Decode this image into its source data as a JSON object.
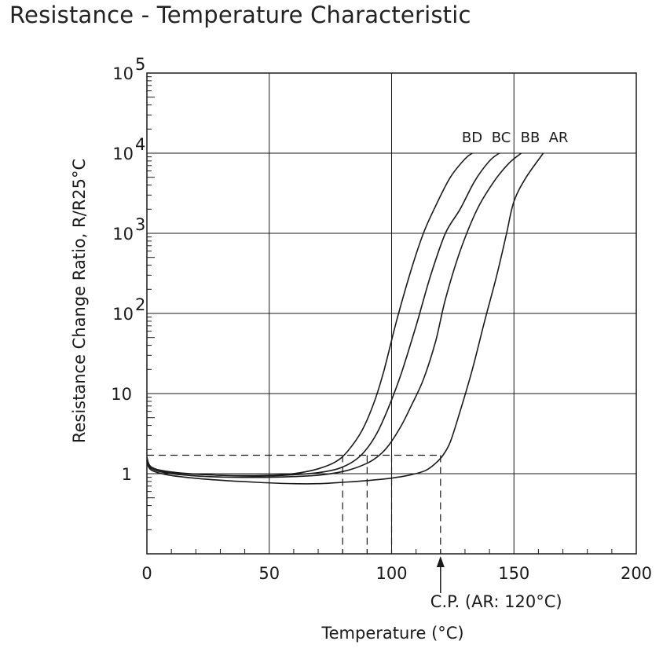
{
  "title": "Resistance - Temperature Characteristic",
  "chart_data": {
    "type": "line",
    "title": "Resistance - Temperature Characteristic",
    "xlabel": "Temperature (°C)",
    "ylabel": "Resistance Change Ratio, R/R25°C",
    "xlim": [
      0,
      200
    ],
    "ylim": [
      0.1,
      100000
    ],
    "yscale": "log",
    "grid": true,
    "x_ticks": [
      0,
      50,
      100,
      150,
      200
    ],
    "x_tick_labels": [
      "0",
      "50",
      "100",
      "150",
      "200"
    ],
    "y_ticks": [
      {
        "value": 1,
        "base": "1",
        "exp": ""
      },
      {
        "value": 10,
        "base": "10",
        "exp": ""
      },
      {
        "value": 100,
        "base": "10",
        "exp": "2"
      },
      {
        "value": 1000,
        "base": "10",
        "exp": "3"
      },
      {
        "value": 10000,
        "base": "10",
        "exp": "4"
      },
      {
        "value": 100000,
        "base": "10",
        "exp": "5"
      }
    ],
    "series": [
      {
        "name": "BD",
        "x": [
          0,
          2,
          10,
          25,
          40,
          55,
          62,
          70,
          77,
          82,
          88,
          93,
          97,
          102,
          108,
          113,
          118,
          124,
          130,
          133
        ],
        "y": [
          1.6,
          1.2,
          1.05,
          0.97,
          0.95,
          0.97,
          1.02,
          1.15,
          1.4,
          1.9,
          3.5,
          8,
          20,
          80,
          350,
          1000,
          2200,
          5000,
          8500,
          10000
        ]
      },
      {
        "name": "BC",
        "x": [
          0,
          2,
          10,
          25,
          45,
          60,
          70,
          78,
          84,
          89,
          94,
          99,
          104,
          110,
          116,
          122,
          128,
          134,
          140,
          144
        ],
        "y": [
          1.5,
          1.2,
          1.03,
          0.97,
          0.93,
          0.97,
          1.03,
          1.15,
          1.4,
          1.9,
          3.2,
          7,
          18,
          70,
          300,
          1000,
          2000,
          4500,
          8000,
          10000
        ]
      },
      {
        "name": "BB",
        "x": [
          0,
          2,
          10,
          25,
          45,
          60,
          72,
          82,
          90,
          95,
          99,
          104,
          108,
          113,
          118,
          122,
          128,
          135,
          142,
          148,
          153
        ],
        "y": [
          1.5,
          1.15,
          1.0,
          0.92,
          0.9,
          0.92,
          0.97,
          1.1,
          1.35,
          1.7,
          2.3,
          4,
          7,
          15,
          45,
          150,
          600,
          2000,
          4500,
          7500,
          10000
        ]
      },
      {
        "name": "AR",
        "x": [
          0,
          2,
          10,
          25,
          45,
          60,
          70,
          80,
          90,
          100,
          108,
          114,
          118,
          121,
          124,
          128,
          133,
          138,
          143,
          147,
          150,
          155,
          162
        ],
        "y": [
          1.4,
          1.1,
          0.95,
          0.85,
          0.78,
          0.75,
          0.75,
          0.78,
          0.82,
          0.88,
          0.97,
          1.1,
          1.35,
          1.7,
          2.5,
          6,
          20,
          80,
          300,
          1000,
          2500,
          5000,
          10000
        ]
      }
    ],
    "annotations": [
      {
        "text": "C.P. (AR: 120°C)",
        "x": 120,
        "type": "arrow"
      }
    ],
    "reference_lines": {
      "y": 1.7,
      "x_drops": [
        80,
        90,
        100,
        120
      ]
    }
  }
}
